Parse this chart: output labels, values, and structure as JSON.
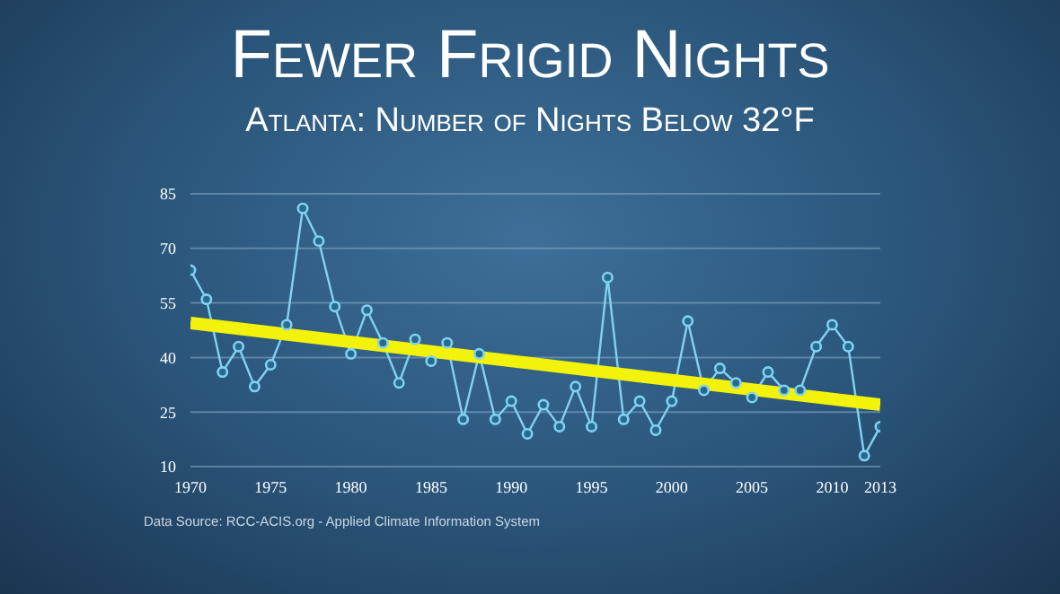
{
  "chart_data": {
    "type": "line",
    "title": "Fewer Frigid Nights",
    "subtitle": "Atlanta: Number of Nights Below 32°F",
    "x": [
      1970,
      1971,
      1972,
      1973,
      1974,
      1975,
      1976,
      1977,
      1978,
      1979,
      1980,
      1981,
      1982,
      1983,
      1984,
      1985,
      1986,
      1987,
      1988,
      1989,
      1990,
      1991,
      1992,
      1993,
      1994,
      1995,
      1996,
      1997,
      1998,
      1999,
      2000,
      2001,
      2002,
      2003,
      2004,
      2005,
      2006,
      2007,
      2008,
      2009,
      2010,
      2011,
      2012,
      2013
    ],
    "series": [
      {
        "color": "#7fd3f0",
        "values": [
          64,
          56,
          36,
          43,
          32,
          38,
          49,
          81,
          72,
          54,
          41,
          53,
          44,
          33,
          45,
          39,
          44,
          23,
          41,
          23,
          28,
          19,
          27,
          21,
          32,
          21,
          62,
          23,
          28,
          20,
          28,
          50,
          31,
          37,
          33,
          29,
          36,
          31,
          31,
          43,
          49,
          43,
          13,
          21
        ]
      },
      {
        "type": "line",
        "color": "#f2f20a",
        "x": [
          1970,
          2013
        ],
        "values": [
          49.5,
          27
        ],
        "marker": "none"
      }
    ],
    "xlim": [
      1970,
      2013
    ],
    "xticks": [
      1970,
      1975,
      1980,
      1985,
      1990,
      1995,
      2000,
      2005,
      2010,
      2013
    ],
    "ylim": [
      10,
      85
    ],
    "yticks": [
      10,
      25,
      40,
      55,
      70,
      85
    ],
    "grid": "y",
    "marker": "circle",
    "annotations": [
      "Data Source: RCC-ACIS.org - Applied Climate Information System"
    ]
  }
}
